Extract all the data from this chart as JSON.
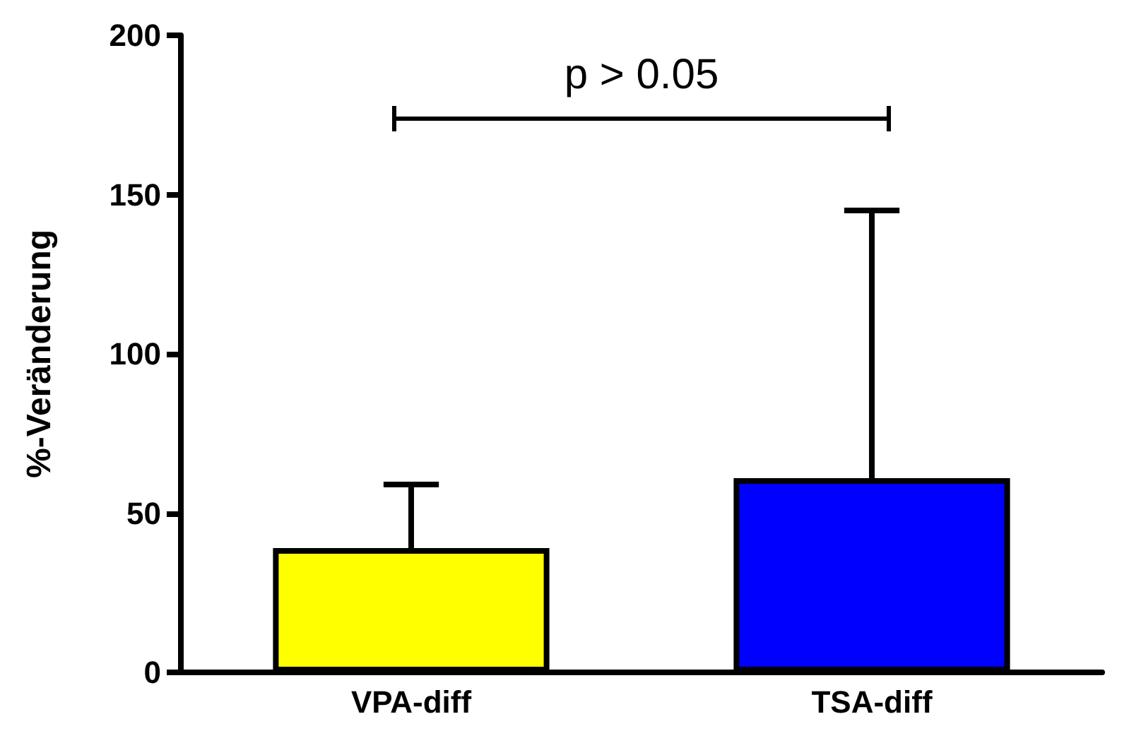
{
  "chart_data": {
    "type": "bar",
    "ylabel": "%-Veränderung",
    "categories": [
      "VPA-diff",
      "TSA-diff"
    ],
    "values": [
      39,
      61
    ],
    "colors": [
      "#ffff00",
      "#0000ff"
    ],
    "errors": [
      [
        39,
        59
      ],
      [
        61,
        145
      ]
    ],
    "ylim": [
      0,
      200
    ],
    "yticks": [
      0,
      50,
      100,
      150,
      200
    ],
    "grid": false,
    "annotations": [
      "p > 0.05"
    ]
  }
}
